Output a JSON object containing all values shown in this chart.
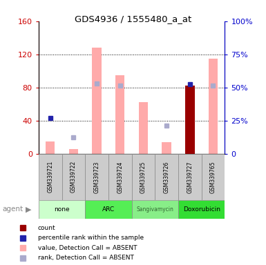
{
  "title": "GDS4936 / 1555480_a_at",
  "samples": [
    "GSM339721",
    "GSM339722",
    "GSM339723",
    "GSM339724",
    "GSM339725",
    "GSM339726",
    "GSM339727",
    "GSM339765"
  ],
  "value_absent": [
    15,
    6,
    128,
    95,
    62,
    14,
    null,
    115
  ],
  "rank_absent_left": [
    null,
    20,
    85,
    82,
    null,
    34,
    null,
    82
  ],
  "count_value": [
    null,
    null,
    null,
    null,
    null,
    null,
    82,
    null
  ],
  "percentile_rank_left": [
    43,
    null,
    null,
    null,
    null,
    null,
    84,
    null
  ],
  "ylim_left": [
    0,
    160
  ],
  "ylim_right": [
    0,
    100
  ],
  "left_ticks": [
    0,
    40,
    80,
    120,
    160
  ],
  "right_ticks": [
    0,
    25,
    50,
    75,
    100
  ],
  "left_tick_labels": [
    "0",
    "40",
    "80",
    "120",
    "160"
  ],
  "right_tick_labels": [
    "0",
    "25%",
    "50%",
    "75%",
    "100%"
  ],
  "left_color": "#cc0000",
  "right_color": "#0000cc",
  "pink_bar_color": "#ffaaaa",
  "lavender_sq_color": "#aaaacc",
  "red_bar_color": "#990000",
  "blue_sq_color": "#2222aa",
  "agent_groups": [
    {
      "label": "none",
      "start": 0,
      "end": 2,
      "color": "#ccffcc"
    },
    {
      "label": "ARC",
      "start": 2,
      "end": 4,
      "color": "#55ee55"
    },
    {
      "label": "Sangivamycin",
      "start": 4,
      "end": 6,
      "color": "#88ee88"
    },
    {
      "label": "Doxorubicin",
      "start": 6,
      "end": 8,
      "color": "#33dd33"
    }
  ],
  "legend_items": [
    {
      "color": "#990000",
      "label": "count"
    },
    {
      "color": "#2222aa",
      "label": "percentile rank within the sample"
    },
    {
      "color": "#ffaaaa",
      "label": "value, Detection Call = ABSENT"
    },
    {
      "color": "#aaaacc",
      "label": "rank, Detection Call = ABSENT"
    }
  ]
}
